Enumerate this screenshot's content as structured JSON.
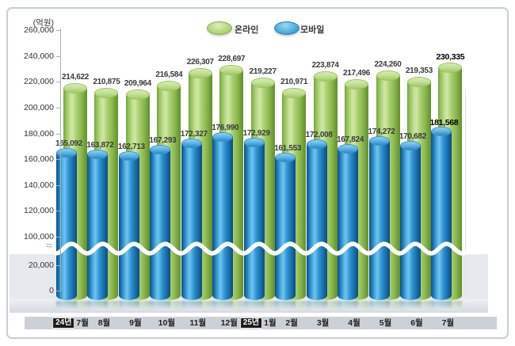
{
  "unit_label": "(억원)",
  "legend": [
    {
      "series": "online",
      "label": "온라인",
      "color": "#a9cf6e"
    },
    {
      "series": "mobile",
      "label": "모바일",
      "color": "#2e90ce"
    }
  ],
  "x_axis": {
    "months": [
      "7월",
      "8월",
      "9월",
      "10월",
      "11월",
      "12월",
      "1월",
      "2월",
      "3월",
      "4월",
      "5월",
      "6월",
      "7월"
    ],
    "year_markers": [
      {
        "index": 0,
        "label": "24년"
      },
      {
        "index": 6,
        "label": "25년"
      }
    ]
  },
  "y_axis": {
    "tick_values": [
      0,
      20000,
      100000,
      120000,
      140000,
      160000,
      180000,
      200000,
      220000,
      240000,
      260000
    ],
    "axis_break_between": [
      20000,
      100000
    ]
  },
  "chart_data": {
    "type": "bar",
    "title": "",
    "unit": "(억원)",
    "categories": [
      "24년 7월",
      "8월",
      "9월",
      "10월",
      "11월",
      "12월",
      "25년 1월",
      "2월",
      "3월",
      "4월",
      "5월",
      "6월",
      "7월"
    ],
    "series": [
      {
        "name": "온라인",
        "color": "#a9cf6e",
        "values": [
          214622,
          210875,
          209964,
          216584,
          226307,
          228697,
          219227,
          210971,
          223874,
          217496,
          224260,
          219353,
          230335
        ]
      },
      {
        "name": "모바일",
        "color": "#2e90ce",
        "values": [
          165092,
          163872,
          162713,
          167293,
          172327,
          176990,
          172929,
          161553,
          172008,
          167824,
          174272,
          170682,
          181568
        ]
      }
    ],
    "ylim": [
      0,
      260000
    ],
    "y_break": [
      20000,
      100000
    ],
    "grid": false,
    "legend_position": "top-center",
    "emphasized_index": 12
  }
}
